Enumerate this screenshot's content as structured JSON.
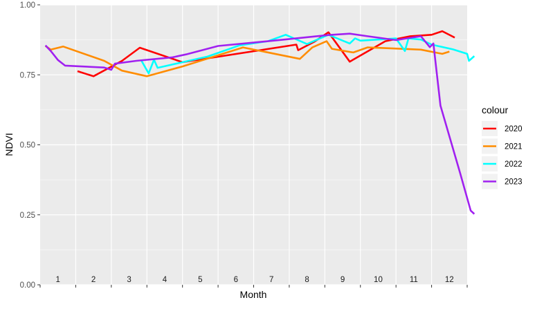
{
  "chart_data": {
    "type": "line",
    "title": "",
    "xlabel": "Month",
    "ylabel": "NDVI",
    "x_domain": [
      0.5,
      12.5
    ],
    "ylim": [
      0,
      1
    ],
    "y_ticks": [
      "0.00",
      "0.25",
      "0.50",
      "0.75",
      "1.00"
    ],
    "y_tick_values": [
      0,
      0.25,
      0.5,
      0.75,
      1
    ],
    "month_labels": [
      "1",
      "2",
      "3",
      "4",
      "5",
      "6",
      "7",
      "8",
      "9",
      "10",
      "11",
      "12"
    ],
    "grid": true,
    "legend": {
      "title": "colour",
      "placement": "right"
    },
    "series": [
      {
        "name": "2020",
        "color": "#ff0000",
        "points": [
          [
            1.55,
            0.763
          ],
          [
            2.0,
            0.745
          ],
          [
            2.8,
            0.8
          ],
          [
            3.3,
            0.847
          ],
          [
            4.5,
            0.795
          ],
          [
            7.7,
            0.858
          ],
          [
            7.75,
            0.838
          ],
          [
            8.2,
            0.868
          ],
          [
            8.6,
            0.902
          ],
          [
            9.2,
            0.797
          ],
          [
            10.2,
            0.87
          ],
          [
            10.9,
            0.888
          ],
          [
            11.5,
            0.893
          ],
          [
            11.8,
            0.906
          ],
          [
            12.15,
            0.883
          ]
        ]
      },
      {
        "name": "2021",
        "color": "#ff8c00",
        "points": [
          [
            0.65,
            0.853
          ],
          [
            0.8,
            0.84
          ],
          [
            1.15,
            0.851
          ],
          [
            2.3,
            0.8
          ],
          [
            2.8,
            0.765
          ],
          [
            3.5,
            0.745
          ],
          [
            4.5,
            0.78
          ],
          [
            6.2,
            0.848
          ],
          [
            7.8,
            0.807
          ],
          [
            8.15,
            0.848
          ],
          [
            8.55,
            0.87
          ],
          [
            8.7,
            0.843
          ],
          [
            9.3,
            0.83
          ],
          [
            9.7,
            0.848
          ],
          [
            10.3,
            0.845
          ],
          [
            11.2,
            0.84
          ],
          [
            11.8,
            0.825
          ],
          [
            12.0,
            0.833
          ]
        ]
      },
      {
        "name": "2022",
        "color": "#00ffff",
        "points": [
          [
            3.35,
            0.8
          ],
          [
            3.55,
            0.755
          ],
          [
            3.7,
            0.804
          ],
          [
            3.8,
            0.775
          ],
          [
            5.2,
            0.815
          ],
          [
            6.1,
            0.855
          ],
          [
            6.9,
            0.87
          ],
          [
            7.4,
            0.893
          ],
          [
            8.0,
            0.86
          ],
          [
            8.6,
            0.893
          ],
          [
            9.2,
            0.862
          ],
          [
            9.35,
            0.88
          ],
          [
            9.5,
            0.872
          ],
          [
            10.5,
            0.88
          ],
          [
            10.75,
            0.835
          ],
          [
            10.85,
            0.88
          ],
          [
            11.2,
            0.876
          ],
          [
            11.5,
            0.858
          ],
          [
            12.1,
            0.841
          ],
          [
            12.5,
            0.825
          ],
          [
            12.55,
            0.8
          ],
          [
            12.7,
            0.817
          ]
        ]
      },
      {
        "name": "2023",
        "color": "#a020f0",
        "points": [
          [
            0.65,
            0.855
          ],
          [
            0.8,
            0.835
          ],
          [
            1.0,
            0.803
          ],
          [
            1.2,
            0.783
          ],
          [
            2.3,
            0.776
          ],
          [
            2.5,
            0.768
          ],
          [
            2.6,
            0.79
          ],
          [
            3.2,
            0.8
          ],
          [
            4.2,
            0.812
          ],
          [
            4.6,
            0.823
          ],
          [
            5.5,
            0.853
          ],
          [
            7.3,
            0.875
          ],
          [
            8.6,
            0.892
          ],
          [
            9.2,
            0.897
          ],
          [
            9.7,
            0.888
          ],
          [
            10.5,
            0.874
          ],
          [
            11.2,
            0.888
          ],
          [
            11.45,
            0.849
          ],
          [
            11.55,
            0.862
          ],
          [
            11.75,
            0.64
          ],
          [
            12.3,
            0.4
          ],
          [
            12.6,
            0.265
          ],
          [
            12.7,
            0.253
          ]
        ]
      }
    ]
  }
}
